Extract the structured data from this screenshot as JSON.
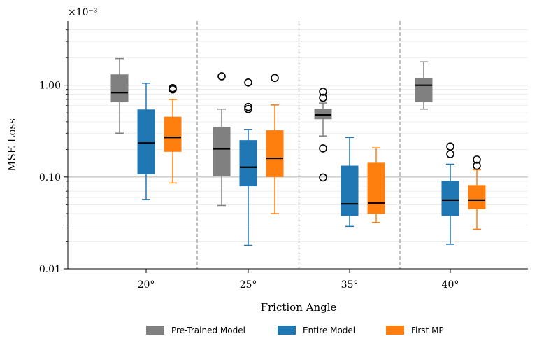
{
  "chart_data": {
    "type": "box",
    "xlabel": "Friction Angle",
    "ylabel": "MSE Loss",
    "scale_note": "×10⁻³",
    "y_scale": "log",
    "ylim": [
      0.01,
      5.0
    ],
    "yticks": [
      0.01,
      0.1,
      1.0
    ],
    "ytick_labels": [
      "0.01",
      "0.10",
      "1.00"
    ],
    "categories": [
      "20°",
      "25°",
      "35°",
      "40°"
    ],
    "grid": "horizontal",
    "legend_position": "bottom",
    "series": [
      {
        "name": "Pre-Trained Model",
        "color": "#808080",
        "boxes": [
          {
            "whisker_low": 0.3,
            "q1": 0.66,
            "median": 0.83,
            "q3": 1.3,
            "whisker_high": 1.95,
            "outliers": []
          },
          {
            "whisker_low": 0.049,
            "q1": 0.103,
            "median": 0.203,
            "q3": 0.35,
            "whisker_high": 0.55,
            "outliers": [
              1.25
            ]
          },
          {
            "whisker_low": 0.28,
            "q1": 0.43,
            "median": 0.475,
            "q3": 0.55,
            "whisker_high": 0.64,
            "outliers": [
              0.85,
              0.73,
              0.205,
              0.099
            ]
          },
          {
            "whisker_low": 0.55,
            "q1": 0.66,
            "median": 1.0,
            "q3": 1.18,
            "whisker_high": 1.8,
            "outliers": []
          }
        ]
      },
      {
        "name": "Entire Model",
        "color": "#1f77b4",
        "boxes": [
          {
            "whisker_low": 0.057,
            "q1": 0.108,
            "median": 0.235,
            "q3": 0.54,
            "whisker_high": 1.05,
            "outliers": []
          },
          {
            "whisker_low": 0.018,
            "q1": 0.08,
            "median": 0.128,
            "q3": 0.25,
            "whisker_high": 0.33,
            "outliers": [
              1.07,
              0.58,
              0.55
            ]
          },
          {
            "whisker_low": 0.029,
            "q1": 0.038,
            "median": 0.051,
            "q3": 0.132,
            "whisker_high": 0.27,
            "outliers": []
          },
          {
            "whisker_low": 0.0185,
            "q1": 0.038,
            "median": 0.056,
            "q3": 0.09,
            "whisker_high": 0.138,
            "outliers": [
              0.215,
              0.178
            ]
          }
        ]
      },
      {
        "name": "First MP",
        "color": "#ff7f0e",
        "boxes": [
          {
            "whisker_low": 0.086,
            "q1": 0.19,
            "median": 0.27,
            "q3": 0.45,
            "whisker_high": 0.7,
            "outliers": [
              0.93,
              0.9
            ]
          },
          {
            "whisker_low": 0.04,
            "q1": 0.101,
            "median": 0.16,
            "q3": 0.32,
            "whisker_high": 0.61,
            "outliers": [
              1.2
            ]
          },
          {
            "whisker_low": 0.032,
            "q1": 0.04,
            "median": 0.052,
            "q3": 0.142,
            "whisker_high": 0.208,
            "outliers": []
          },
          {
            "whisker_low": 0.027,
            "q1": 0.045,
            "median": 0.056,
            "q3": 0.081,
            "whisker_high": 0.12,
            "outliers": [
              0.155,
              0.133
            ]
          }
        ]
      }
    ]
  }
}
